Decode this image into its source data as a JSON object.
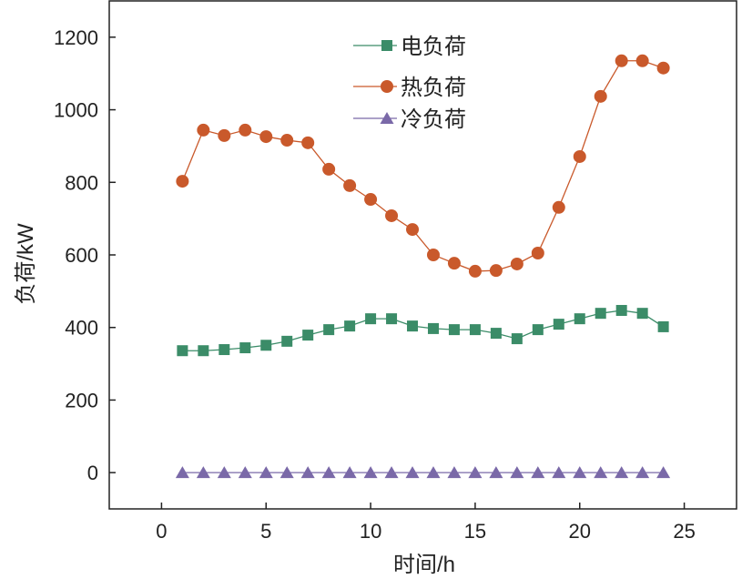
{
  "chart_data": {
    "type": "line",
    "title": "",
    "xlabel": "时间/h",
    "ylabel": "负荷/kW",
    "xlim": [
      -2.5,
      27.5
    ],
    "ylim": [
      -100,
      1300
    ],
    "xticks": [
      0,
      5,
      10,
      15,
      20,
      25
    ],
    "yticks": [
      0,
      200,
      400,
      600,
      800,
      1000,
      1200
    ],
    "grid": false,
    "legend_position": "top-center",
    "x": [
      1,
      2,
      3,
      4,
      5,
      6,
      7,
      8,
      9,
      10,
      11,
      12,
      13,
      14,
      15,
      16,
      17,
      18,
      19,
      20,
      21,
      22,
      23,
      24
    ],
    "series": [
      {
        "name": "电负荷",
        "color": "#3b8c68",
        "marker": "square",
        "values": [
          336,
          336,
          339,
          344,
          351,
          362,
          379,
          394,
          404,
          424,
          424,
          404,
          397,
          394,
          394,
          384,
          369,
          394,
          409,
          424,
          439,
          447,
          439,
          402
        ]
      },
      {
        "name": "热负荷",
        "color": "#c9592b",
        "marker": "circle",
        "values": [
          803,
          944,
          929,
          944,
          926,
          916,
          909,
          836,
          791,
          753,
          708,
          670,
          600,
          577,
          555,
          557,
          575,
          605,
          731,
          871,
          1037,
          1135,
          1135,
          1115
        ]
      },
      {
        "name": "冷负荷",
        "color": "#7a69a8",
        "marker": "triangle",
        "values": [
          0,
          0,
          0,
          0,
          0,
          0,
          0,
          0,
          0,
          0,
          0,
          0,
          0,
          0,
          0,
          0,
          0,
          0,
          0,
          0,
          0,
          0,
          0,
          0
        ]
      }
    ]
  }
}
